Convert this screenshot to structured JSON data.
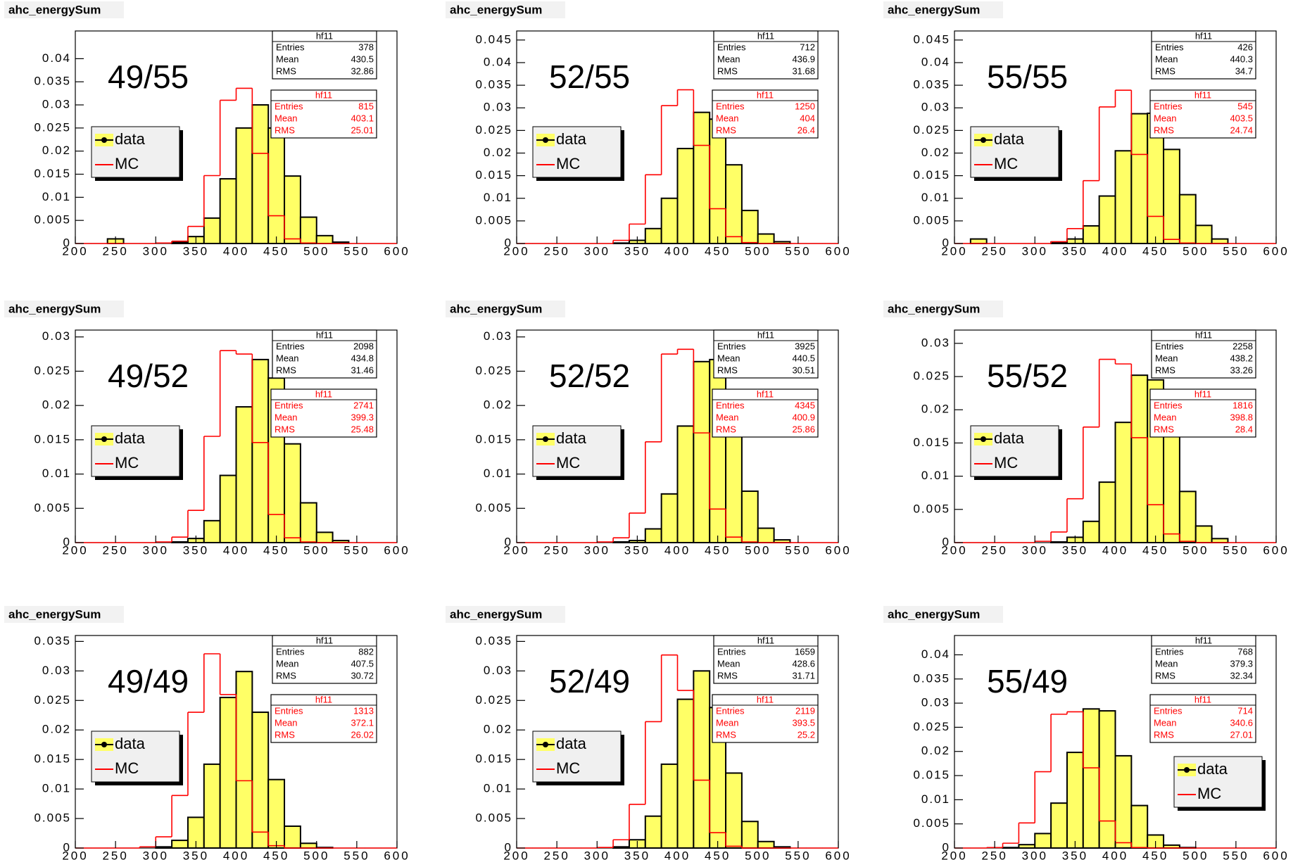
{
  "chart_data": [
    {
      "type": "histogram",
      "title": "ahc_energySum",
      "label": "49/55",
      "legend": "middle left",
      "bins": [
        200,
        220,
        240,
        260,
        280,
        300,
        320,
        340,
        360,
        380,
        400,
        420,
        440,
        460,
        480,
        500,
        520,
        540,
        560,
        580,
        600
      ],
      "xlim": [
        200,
        600
      ],
      "xticks": [
        200,
        250,
        300,
        350,
        400,
        450,
        500,
        550,
        600
      ],
      "ylim": [
        0,
        0.046
      ],
      "yticks": [
        0,
        0.005,
        0.01,
        0.015,
        0.02,
        0.025,
        0.03,
        0.035,
        0.04
      ],
      "series": [
        {
          "name": "data",
          "color": "#ffff66",
          "edgecolor": "#000000",
          "values": [
            0,
            0,
            0.001,
            0,
            0,
            0,
            0.0003,
            0.0015,
            0.0055,
            0.014,
            0.025,
            0.03,
            0.025,
            0.0146,
            0.0057,
            0.0017,
            0.0003,
            0,
            0,
            0
          ]
        },
        {
          "name": "MC",
          "color": "#ff0000",
          "values": [
            0,
            0,
            0,
            0,
            0,
            0.0001,
            0.0005,
            0.0037,
            0.0147,
            0.031,
            0.0336,
            0.0195,
            0.006,
            0.001,
            0.0001,
            0,
            0,
            0,
            0,
            0
          ]
        }
      ],
      "stats_fields": [
        "Entries",
        "Mean",
        "RMS"
      ],
      "stats": [
        {
          "title": "hf11",
          "color": "#000000",
          "entries": 378,
          "mean": 430.5,
          "rms": 32.86
        },
        {
          "title": "hf11",
          "color": "#ff0000",
          "entries": 815,
          "mean": 403.1,
          "rms": 25.01
        }
      ]
    },
    {
      "type": "histogram",
      "title": "ahc_energySum",
      "label": "52/55",
      "legend": "middle left",
      "bins": [
        200,
        220,
        240,
        260,
        280,
        300,
        320,
        340,
        360,
        380,
        400,
        420,
        440,
        460,
        480,
        500,
        520,
        540,
        560,
        580,
        600
      ],
      "xlim": [
        200,
        600
      ],
      "xticks": [
        200,
        250,
        300,
        350,
        400,
        450,
        500,
        550,
        600
      ],
      "ylim": [
        0,
        0.047
      ],
      "yticks": [
        0,
        0.005,
        0.01,
        0.015,
        0.02,
        0.025,
        0.03,
        0.035,
        0.04,
        0.045
      ],
      "series": [
        {
          "name": "data",
          "color": "#ffff66",
          "edgecolor": "#000000",
          "values": [
            0,
            0,
            0,
            0,
            0,
            0,
            0.0001,
            0.0007,
            0.0033,
            0.01,
            0.021,
            0.029,
            0.0275,
            0.0174,
            0.0073,
            0.0021,
            0.0004,
            0,
            0,
            0
          ]
        },
        {
          "name": "MC",
          "color": "#ff0000",
          "values": [
            0,
            0,
            0,
            0,
            0,
            0,
            0.0007,
            0.0043,
            0.0152,
            0.0305,
            0.034,
            0.0217,
            0.0077,
            0.0015,
            0.0002,
            0,
            0,
            0,
            0,
            0
          ]
        }
      ],
      "stats_fields": [
        "Entries",
        "Mean",
        "RMS"
      ],
      "stats": [
        {
          "title": "hf11",
          "color": "#000000",
          "entries": 712,
          "mean": 436.9,
          "rms": 31.68
        },
        {
          "title": "hf11",
          "color": "#ff0000",
          "entries": 1250,
          "mean": 404,
          "rms": 26.4
        }
      ]
    },
    {
      "type": "histogram",
      "title": "ahc_energySum",
      "label": "55/55",
      "legend": "middle left",
      "bins": [
        200,
        220,
        240,
        260,
        280,
        300,
        320,
        340,
        360,
        380,
        400,
        420,
        440,
        460,
        480,
        500,
        520,
        540,
        560,
        580,
        600
      ],
      "xlim": [
        200,
        600
      ],
      "xticks": [
        200,
        250,
        300,
        350,
        400,
        450,
        500,
        550,
        600
      ],
      "ylim": [
        0,
        0.047
      ],
      "yticks": [
        0,
        0.005,
        0.01,
        0.015,
        0.02,
        0.025,
        0.03,
        0.035,
        0.04,
        0.045
      ],
      "series": [
        {
          "name": "data",
          "color": "#ffff66",
          "edgecolor": "#000000",
          "values": [
            0,
            0.001,
            0,
            0,
            0,
            0,
            0.0003,
            0.001,
            0.0039,
            0.0105,
            0.0205,
            0.0287,
            0.0288,
            0.0208,
            0.0108,
            0.004,
            0.001,
            0,
            0,
            0
          ]
        },
        {
          "name": "MC",
          "color": "#ff0000",
          "values": [
            0,
            0,
            0,
            0,
            0,
            0,
            0.0004,
            0.0033,
            0.0139,
            0.0302,
            0.0339,
            0.0197,
            0.006,
            0.0009,
            0.0001,
            0,
            0,
            0,
            0,
            0
          ]
        }
      ],
      "stats_fields": [
        "Entries",
        "Mean",
        "RMS"
      ],
      "stats": [
        {
          "title": "hf11",
          "color": "#000000",
          "entries": 426,
          "mean": 440.3,
          "rms": 34.7
        },
        {
          "title": "hf11",
          "color": "#ff0000",
          "entries": 545,
          "mean": 403.5,
          "rms": 24.74
        }
      ]
    },
    {
      "type": "histogram",
      "title": "ahc_energySum",
      "label": "49/52",
      "legend": "middle left",
      "bins": [
        200,
        220,
        240,
        260,
        280,
        300,
        320,
        340,
        360,
        380,
        400,
        420,
        440,
        460,
        480,
        500,
        520,
        540,
        560,
        580,
        600
      ],
      "xlim": [
        200,
        600
      ],
      "xticks": [
        200,
        250,
        300,
        350,
        400,
        450,
        500,
        550,
        600
      ],
      "ylim": [
        0,
        0.031
      ],
      "yticks": [
        0,
        0.005,
        0.01,
        0.015,
        0.02,
        0.025,
        0.03
      ],
      "series": [
        {
          "name": "data",
          "color": "#ffff66",
          "edgecolor": "#000000",
          "values": [
            0,
            0,
            0,
            0,
            0,
            0,
            0.0001,
            0.0006,
            0.0032,
            0.0098,
            0.0198,
            0.0267,
            0.024,
            0.0144,
            0.0058,
            0.0015,
            0.0003,
            0,
            0,
            0
          ]
        },
        {
          "name": "MC",
          "color": "#ff0000",
          "values": [
            0,
            0,
            0,
            0,
            0,
            0.0001,
            0.0008,
            0.0047,
            0.0155,
            0.028,
            0.0275,
            0.0146,
            0.0041,
            0.0007,
            0.0001,
            0,
            0,
            0,
            0,
            0
          ]
        }
      ],
      "stats_fields": [
        "Entries",
        "Mean",
        "RMS"
      ],
      "stats": [
        {
          "title": "hf11",
          "color": "#000000",
          "entries": 2098,
          "mean": 434.8,
          "rms": 31.46
        },
        {
          "title": "hf11",
          "color": "#ff0000",
          "entries": 2741,
          "mean": 399.3,
          "rms": 25.48
        }
      ]
    },
    {
      "type": "histogram",
      "title": "ahc_energySum",
      "label": "52/52",
      "legend": "middle left",
      "bins": [
        200,
        220,
        240,
        260,
        280,
        300,
        320,
        340,
        360,
        380,
        400,
        420,
        440,
        460,
        480,
        500,
        520,
        540,
        560,
        580,
        600
      ],
      "xlim": [
        200,
        600
      ],
      "xticks": [
        200,
        250,
        300,
        350,
        400,
        450,
        500,
        550,
        600
      ],
      "ylim": [
        0,
        0.031
      ],
      "yticks": [
        0,
        0.005,
        0.01,
        0.015,
        0.02,
        0.025,
        0.03
      ],
      "series": [
        {
          "name": "data",
          "color": "#ffff66",
          "edgecolor": "#000000",
          "values": [
            0,
            0,
            0,
            0,
            0,
            0,
            0.0001,
            0.0003,
            0.002,
            0.0071,
            0.017,
            0.0264,
            0.0267,
            0.0175,
            0.0075,
            0.0021,
            0.0004,
            0,
            0,
            0
          ]
        },
        {
          "name": "MC",
          "color": "#ff0000",
          "values": [
            0,
            0,
            0,
            0,
            0,
            0.0001,
            0.0007,
            0.0043,
            0.0147,
            0.0275,
            0.0282,
            0.016,
            0.0049,
            0.0008,
            0.0001,
            0,
            0,
            0,
            0,
            0
          ]
        }
      ],
      "stats_fields": [
        "Entries",
        "Mean",
        "RMS"
      ],
      "stats": [
        {
          "title": "hf11",
          "color": "#000000",
          "entries": 3925,
          "mean": 440.5,
          "rms": 30.51
        },
        {
          "title": "hf11",
          "color": "#ff0000",
          "entries": 4345,
          "mean": 400.9,
          "rms": 25.86
        }
      ]
    },
    {
      "type": "histogram",
      "title": "ahc_energySum",
      "label": "55/52",
      "legend": "middle left",
      "bins": [
        200,
        220,
        240,
        260,
        280,
        300,
        320,
        340,
        360,
        380,
        400,
        420,
        440,
        460,
        480,
        500,
        520,
        540,
        560,
        580,
        600
      ],
      "xlim": [
        200,
        600
      ],
      "xticks": [
        200,
        250,
        300,
        350,
        400,
        450,
        500,
        550,
        600
      ],
      "ylim": [
        0,
        0.032
      ],
      "yticks": [
        0,
        0.005,
        0.01,
        0.015,
        0.02,
        0.025,
        0.03
      ],
      "series": [
        {
          "name": "data",
          "color": "#ffff66",
          "edgecolor": "#000000",
          "values": [
            0,
            0,
            0,
            0,
            0,
            0,
            0.0001,
            0.0008,
            0.0032,
            0.0091,
            0.0181,
            0.0252,
            0.0245,
            0.0165,
            0.0077,
            0.0025,
            0.0006,
            0,
            0,
            0
          ]
        },
        {
          "name": "MC",
          "color": "#ff0000",
          "values": [
            0,
            0,
            0,
            0,
            0,
            0.0002,
            0.0016,
            0.0066,
            0.0174,
            0.0276,
            0.0269,
            0.0158,
            0.0057,
            0.0013,
            0.0002,
            0,
            0,
            0,
            0,
            0
          ]
        }
      ],
      "stats_fields": [
        "Entries",
        "Mean",
        "RMS"
      ],
      "stats": [
        {
          "title": "hf11",
          "color": "#000000",
          "entries": 2258,
          "mean": 438.2,
          "rms": 33.26
        },
        {
          "title": "hf11",
          "color": "#ff0000",
          "entries": 1816,
          "mean": 398.8,
          "rms": 28.4
        }
      ]
    },
    {
      "type": "histogram",
      "title": "ahc_energySum",
      "label": "49/49",
      "legend": "middle left",
      "bins": [
        200,
        220,
        240,
        260,
        280,
        300,
        320,
        340,
        360,
        380,
        400,
        420,
        440,
        460,
        480,
        500,
        520,
        540,
        560,
        580,
        600
      ],
      "xlim": [
        200,
        600
      ],
      "xticks": [
        200,
        250,
        300,
        350,
        400,
        450,
        500,
        550,
        600
      ],
      "ylim": [
        0,
        0.036
      ],
      "yticks": [
        0,
        0.005,
        0.01,
        0.015,
        0.02,
        0.025,
        0.03,
        0.035
      ],
      "series": [
        {
          "name": "data",
          "color": "#ffff66",
          "edgecolor": "#000000",
          "values": [
            0,
            0,
            0,
            0,
            0,
            0.0002,
            0.0013,
            0.0052,
            0.0142,
            0.0255,
            0.0299,
            0.023,
            0.0116,
            0.0037,
            0.0008,
            0.0001,
            0,
            0,
            0,
            0
          ]
        },
        {
          "name": "MC",
          "color": "#ff0000",
          "values": [
            0,
            0,
            0,
            0,
            0.0002,
            0.0019,
            0.0089,
            0.023,
            0.0329,
            0.026,
            0.0114,
            0.0027,
            0.0004,
            0,
            0,
            0,
            0,
            0,
            0,
            0
          ]
        }
      ],
      "stats_fields": [
        "Entries",
        "Mean",
        "RMS"
      ],
      "stats": [
        {
          "title": "hf11",
          "color": "#000000",
          "entries": 882,
          "mean": 407.5,
          "rms": 30.72
        },
        {
          "title": "hf11",
          "color": "#ff0000",
          "entries": 1313,
          "mean": 372.1,
          "rms": 26.02
        }
      ]
    },
    {
      "type": "histogram",
      "title": "ahc_energySum",
      "label": "52/49",
      "legend": "middle left",
      "bins": [
        200,
        220,
        240,
        260,
        280,
        300,
        320,
        340,
        360,
        380,
        400,
        420,
        440,
        460,
        480,
        500,
        520,
        540,
        560,
        580,
        600
      ],
      "xlim": [
        200,
        600
      ],
      "xticks": [
        200,
        250,
        300,
        350,
        400,
        450,
        500,
        550,
        600
      ],
      "ylim": [
        0,
        0.036
      ],
      "yticks": [
        0,
        0.005,
        0.01,
        0.015,
        0.02,
        0.025,
        0.03,
        0.035
      ],
      "series": [
        {
          "name": "data",
          "color": "#ffff66",
          "edgecolor": "#000000",
          "values": [
            0,
            0,
            0,
            0,
            0,
            0,
            0.0002,
            0.0014,
            0.0054,
            0.0142,
            0.0252,
            0.03,
            0.0238,
            0.0127,
            0.0045,
            0.0011,
            0.0002,
            0,
            0,
            0
          ]
        },
        {
          "name": "MC",
          "color": "#ff0000",
          "values": [
            0,
            0,
            0,
            0,
            0,
            0.0001,
            0.0014,
            0.0074,
            0.0214,
            0.0327,
            0.0267,
            0.0115,
            0.0026,
            0.0003,
            0,
            0,
            0,
            0,
            0,
            0
          ]
        }
      ],
      "stats_fields": [
        "Entries",
        "Mean",
        "RMS"
      ],
      "stats": [
        {
          "title": "hf11",
          "color": "#000000",
          "entries": 1659,
          "mean": 428.6,
          "rms": 31.71
        },
        {
          "title": "hf11",
          "color": "#ff0000",
          "entries": 2119,
          "mean": 393.5,
          "rms": 25.2
        }
      ]
    },
    {
      "type": "histogram",
      "title": "ahc_energySum",
      "label": "55/49",
      "legend": "lower right",
      "bins": [
        200,
        220,
        240,
        260,
        280,
        300,
        320,
        340,
        360,
        380,
        400,
        420,
        440,
        460,
        480,
        500,
        520,
        540,
        560,
        580,
        600
      ],
      "xlim": [
        200,
        600
      ],
      "xticks": [
        200,
        250,
        300,
        350,
        400,
        450,
        500,
        550,
        600
      ],
      "ylim": [
        0,
        0.044
      ],
      "yticks": [
        0,
        0.005,
        0.01,
        0.015,
        0.02,
        0.025,
        0.03,
        0.035,
        0.04
      ],
      "series": [
        {
          "name": "data",
          "color": "#ffff66",
          "edgecolor": "#000000",
          "values": [
            0,
            0,
            0,
            0.0001,
            0.0007,
            0.003,
            0.0093,
            0.0198,
            0.0288,
            0.0284,
            0.0191,
            0.0088,
            0.0027,
            0.0006,
            0.0001,
            0,
            0,
            0,
            0,
            0
          ]
        },
        {
          "name": "MC",
          "color": "#ff0000",
          "values": [
            0,
            0,
            0.0001,
            0.001,
            0.0052,
            0.0158,
            0.0277,
            0.0282,
            0.0166,
            0.0056,
            0.0011,
            0.0001,
            0,
            0,
            0,
            0,
            0,
            0,
            0,
            0
          ]
        }
      ],
      "stats_fields": [
        "Entries",
        "Mean",
        "RMS"
      ],
      "stats": [
        {
          "title": "hf11",
          "color": "#000000",
          "entries": 768,
          "mean": 379.3,
          "rms": 32.34
        },
        {
          "title": "hf11",
          "color": "#ff0000",
          "entries": 714,
          "mean": 340.6,
          "rms": 27.01
        }
      ]
    }
  ]
}
